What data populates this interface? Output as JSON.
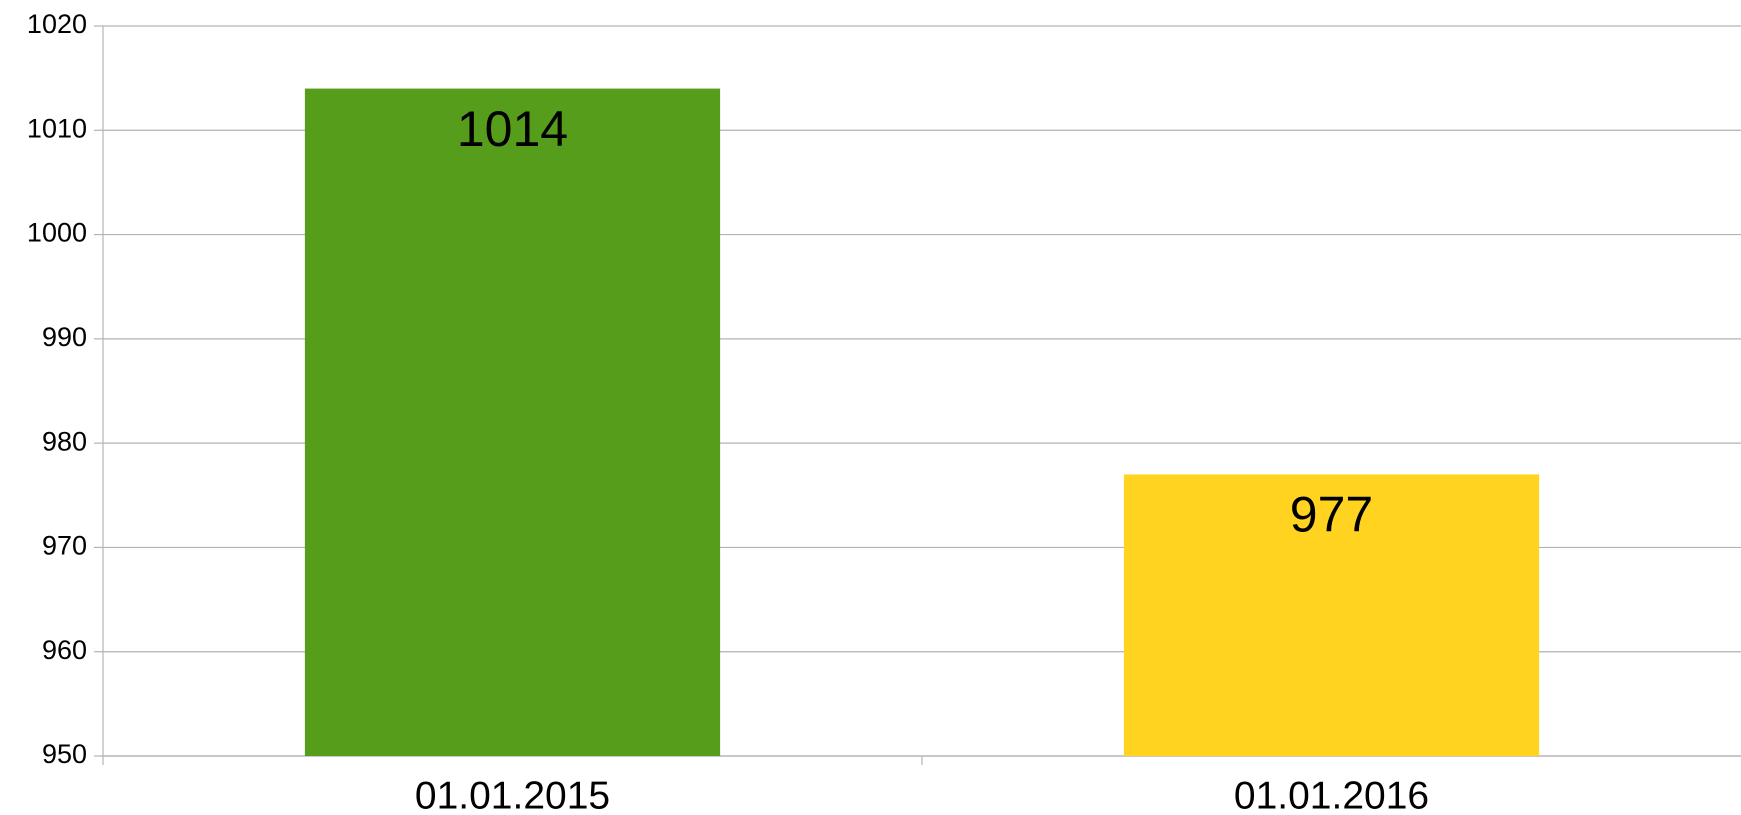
{
  "chart_data": {
    "type": "bar",
    "categories": [
      "01.01.2015",
      "01.01.2016"
    ],
    "values": [
      1014,
      977
    ],
    "colors": [
      "#579d1c",
      "#ffd320"
    ],
    "ylim": [
      950,
      1020
    ],
    "yticks": [
      950,
      960,
      970,
      980,
      990,
      1000,
      1010,
      1020
    ],
    "grid": true
  }
}
